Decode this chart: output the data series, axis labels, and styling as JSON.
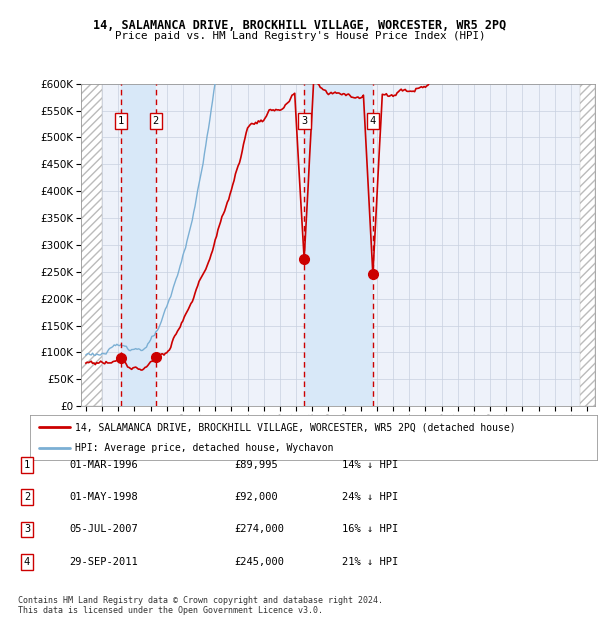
{
  "title": "14, SALAMANCA DRIVE, BROCKHILL VILLAGE, WORCESTER, WR5 2PQ",
  "subtitle": "Price paid vs. HM Land Registry's House Price Index (HPI)",
  "legend_line1": "14, SALAMANCA DRIVE, BROCKHILL VILLAGE, WORCESTER, WR5 2PQ (detached house)",
  "legend_line2": "HPI: Average price, detached house, Wychavon",
  "footer": "Contains HM Land Registry data © Crown copyright and database right 2024.\nThis data is licensed under the Open Government Licence v3.0.",
  "ylim": [
    0,
    600000
  ],
  "yticks": [
    0,
    50000,
    100000,
    150000,
    200000,
    250000,
    300000,
    350000,
    400000,
    450000,
    500000,
    550000,
    600000
  ],
  "xlim_start": 1993.7,
  "xlim_end": 2025.5,
  "hatch_left_end": 1995.0,
  "hatch_right_start": 2024.58,
  "transactions": [
    {
      "num": 1,
      "date_str": "01-MAR-1996",
      "date_x": 1996.17,
      "price": 89995,
      "pct": "14%"
    },
    {
      "num": 2,
      "date_str": "01-MAY-1998",
      "date_x": 1998.33,
      "price": 92000,
      "pct": "24%"
    },
    {
      "num": 3,
      "date_str": "05-JUL-2007",
      "date_x": 2007.51,
      "price": 274000,
      "pct": "16%"
    },
    {
      "num": 4,
      "date_str": "29-SEP-2011",
      "date_x": 2011.75,
      "price": 245000,
      "pct": "21%"
    }
  ],
  "table_rows": [
    [
      1,
      "01-MAR-1996",
      "£89,995",
      "14% ↓ HPI"
    ],
    [
      2,
      "01-MAY-1998",
      "£92,000",
      "24% ↓ HPI"
    ],
    [
      3,
      "05-JUL-2007",
      "£274,000",
      "16% ↓ HPI"
    ],
    [
      4,
      "29-SEP-2011",
      "£245,000",
      "21% ↓ HPI"
    ]
  ],
  "red_color": "#cc0000",
  "blue_color": "#7BAFD4",
  "bg_chart": "#eef2fa",
  "grid_color": "#c8d0e0",
  "shade_color": "#d8e8f8",
  "hatch_color": "#bbbbbb"
}
